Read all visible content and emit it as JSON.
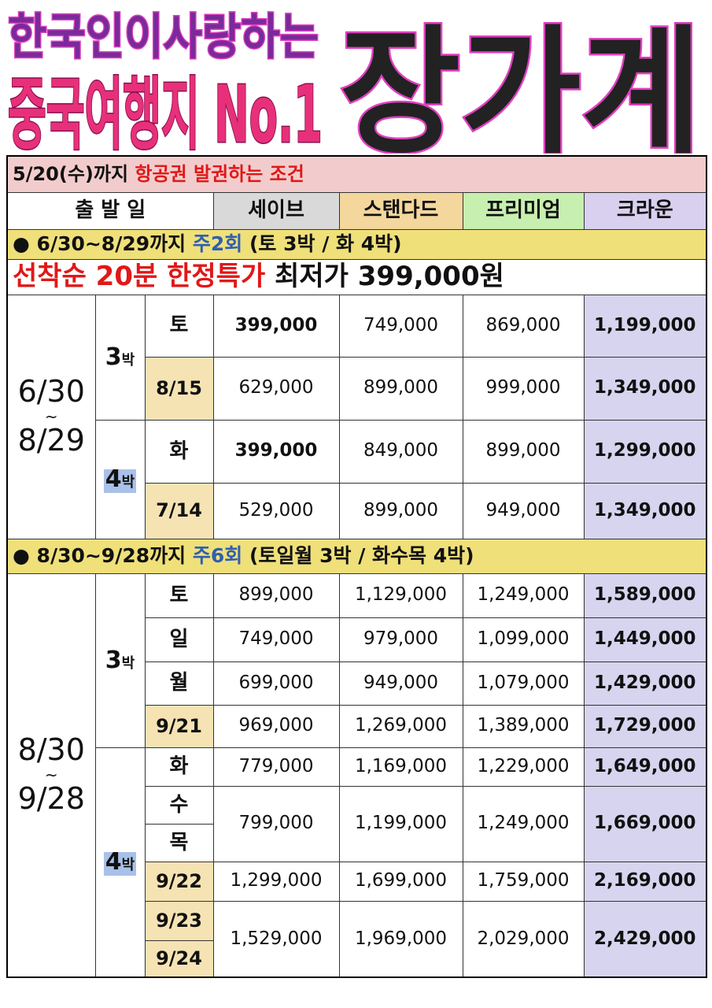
{
  "header": {
    "line1": "한국인이사랑하는",
    "line2": "중국여행지 No.1",
    "destination": "장가계"
  },
  "table": {
    "condition": {
      "deadline": "5/20(수)까지",
      "text": "항공권 발권하는 조건"
    },
    "columns": [
      "출 발 일",
      "세이브",
      "스탠다드",
      "프리미엄",
      "크라운"
    ],
    "sections": [
      {
        "bullet": "●",
        "period_text": "6/30~8/29까지",
        "frequency": "주2회",
        "schedule": "(토 3박 / 화 4박)",
        "promo": {
          "label": "선착순 20분 한정특가",
          "price": "최저가 399,000원"
        },
        "period": {
          "start": "6/30",
          "sep": "~",
          "end": "8/29"
        },
        "groups": [
          {
            "nights": "3",
            "unit": "박",
            "rows": [
              {
                "days": [
                  "토"
                ],
                "prices": [
                  "399,000",
                  "749,000",
                  "869,000",
                  "1,199,000"
                ]
              },
              {
                "days": [
                  "8/15"
                ],
                "prices": [
                  "629,000",
                  "899,000",
                  "999,000",
                  "1,349,000"
                ]
              }
            ]
          },
          {
            "nights": "4",
            "unit": "박",
            "rows": [
              {
                "days": [
                  "화"
                ],
                "prices": [
                  "399,000",
                  "849,000",
                  "899,000",
                  "1,299,000"
                ]
              },
              {
                "days": [
                  "7/14"
                ],
                "prices": [
                  "529,000",
                  "899,000",
                  "949,000",
                  "1,349,000"
                ]
              }
            ]
          }
        ]
      },
      {
        "bullet": "●",
        "period_text": "8/30~9/28까지",
        "frequency": "주6회",
        "schedule": "(토일월 3박 / 화수목 4박)",
        "period": {
          "start": "8/30",
          "sep": "~",
          "end": "9/28"
        },
        "groups": [
          {
            "nights": "3",
            "unit": "박",
            "rows": [
              {
                "days": [
                  "토"
                ],
                "prices": [
                  "899,000",
                  "1,129,000",
                  "1,249,000",
                  "1,589,000"
                ]
              },
              {
                "days": [
                  "일"
                ],
                "prices": [
                  "749,000",
                  "979,000",
                  "1,099,000",
                  "1,449,000"
                ]
              },
              {
                "days": [
                  "월"
                ],
                "prices": [
                  "699,000",
                  "949,000",
                  "1,079,000",
                  "1,429,000"
                ]
              },
              {
                "days": [
                  "9/21"
                ],
                "prices": [
                  "969,000",
                  "1,269,000",
                  "1,389,000",
                  "1,729,000"
                ]
              }
            ]
          },
          {
            "nights": "4",
            "unit": "박",
            "rows": [
              {
                "days": [
                  "화"
                ],
                "prices": [
                  "779,000",
                  "1,169,000",
                  "1,229,000",
                  "1,649,000"
                ]
              },
              {
                "days": [
                  "수",
                  "목"
                ],
                "prices": [
                  "799,000",
                  "1,199,000",
                  "1,249,000",
                  "1,669,000"
                ]
              },
              {
                "days": [
                  "9/22"
                ],
                "prices": [
                  "1,299,000",
                  "1,699,000",
                  "1,759,000",
                  "2,169,000"
                ]
              },
              {
                "days": [
                  "9/23",
                  "9/24"
                ],
                "prices": [
                  "1,529,000",
                  "1,969,000",
                  "2,029,000",
                  "2,429,000"
                ]
              }
            ]
          }
        ]
      }
    ]
  }
}
